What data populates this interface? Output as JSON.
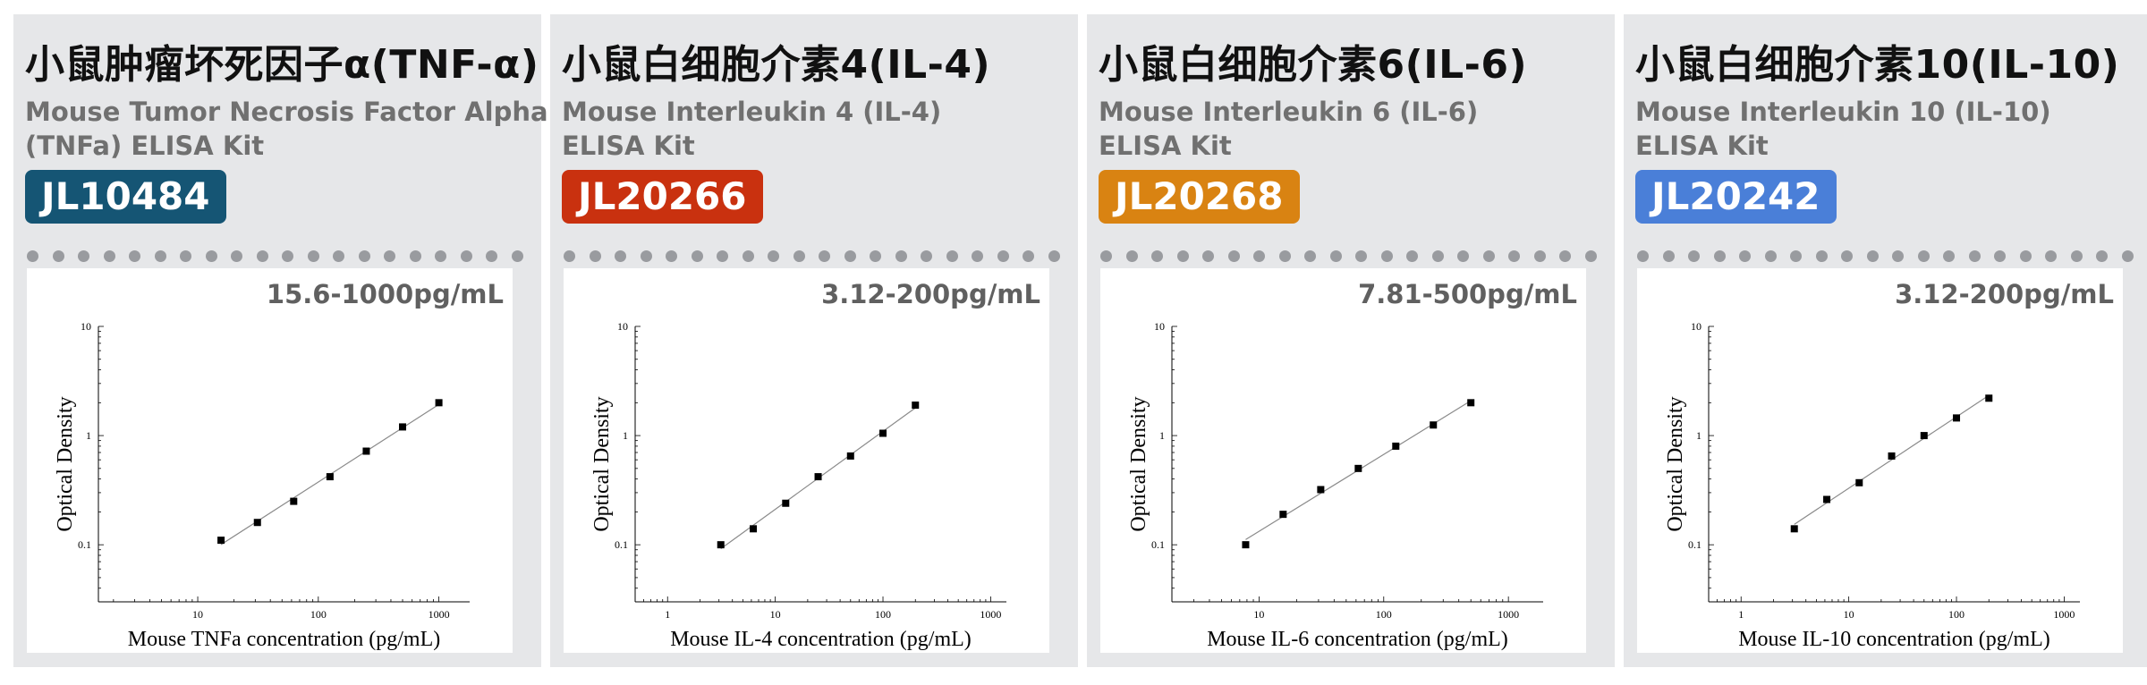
{
  "chart_data": [
    {
      "type": "scatter",
      "title": "小鼠肿瘤坏死因子α(TNF-α)",
      "subtitle_lines": [
        "Mouse Tumor Necrosis Factor Alpha",
        " (TNFa) ELISA Kit"
      ],
      "code": "JL10484",
      "range": "15.6-1000pg/mL",
      "xlabel": "Mouse TNFa concentration (pg/mL)",
      "ylabel": "Optical Density",
      "x_scale": "log",
      "y_scale": "log",
      "xlim": [
        1.5,
        1800
      ],
      "ylim": [
        0.03,
        10
      ],
      "x_ticks": [
        10,
        100,
        1000
      ],
      "x_tick_labels": [
        "10",
        "100",
        "1000"
      ],
      "y_ticks": [
        0.1,
        1,
        10
      ],
      "y_tick_labels": [
        "0.1",
        "1",
        "10"
      ],
      "grid": false,
      "trend_line": true,
      "series": [
        {
          "x": [
            15.6,
            31.25,
            62.5,
            125,
            250,
            500,
            1000
          ],
          "y": [
            0.11,
            0.16,
            0.25,
            0.42,
            0.72,
            1.2,
            2.0
          ]
        }
      ]
    },
    {
      "type": "scatter",
      "title": "小鼠白细胞介素4(IL-4)",
      "subtitle_lines": [
        "Mouse Interleukin 4 (IL-4)",
        "ELISA Kit"
      ],
      "code": "JL20266",
      "range": "3.12-200pg/mL",
      "xlabel": "Mouse IL-4 concentration (pg/mL)",
      "ylabel": "Optical Density",
      "x_scale": "log",
      "y_scale": "log",
      "xlim": [
        0.5,
        1400
      ],
      "ylim": [
        0.03,
        10
      ],
      "x_ticks": [
        1,
        10,
        100,
        1000
      ],
      "x_tick_labels": [
        "1",
        "10",
        "100",
        "1000"
      ],
      "y_ticks": [
        0.1,
        1,
        10
      ],
      "y_tick_labels": [
        "0.1",
        "1",
        "10"
      ],
      "grid": false,
      "trend_line": true,
      "series": [
        {
          "x": [
            3.12,
            6.25,
            12.5,
            25,
            50,
            100,
            200
          ],
          "y": [
            0.1,
            0.14,
            0.24,
            0.42,
            0.65,
            1.05,
            1.9
          ]
        }
      ]
    },
    {
      "type": "scatter",
      "title": "小鼠白细胞介素6(IL-6)",
      "subtitle_lines": [
        "Mouse Interleukin 6 (IL-6)",
        "ELISA Kit"
      ],
      "code": "JL20268",
      "range": "7.81-500pg/mL",
      "xlabel": "Mouse IL-6 concentration (pg/mL)",
      "ylabel": "Optical Density",
      "x_scale": "log",
      "y_scale": "log",
      "xlim": [
        2,
        1900
      ],
      "ylim": [
        0.03,
        10
      ],
      "x_ticks": [
        10,
        100,
        1000
      ],
      "x_tick_labels": [
        "10",
        "100",
        "1000"
      ],
      "y_ticks": [
        0.1,
        1,
        10
      ],
      "y_tick_labels": [
        "0.1",
        "1",
        "10"
      ],
      "grid": false,
      "trend_line": true,
      "series": [
        {
          "x": [
            7.81,
            15.6,
            31.25,
            62.5,
            125,
            250,
            500
          ],
          "y": [
            0.1,
            0.19,
            0.32,
            0.5,
            0.8,
            1.25,
            2.0
          ]
        }
      ]
    },
    {
      "type": "scatter",
      "title": "小鼠白细胞介素10(IL-10)",
      "subtitle_lines": [
        "Mouse Interleukin 10 (IL-10)",
        "ELISA Kit"
      ],
      "code": "JL20242",
      "range": "3.12-200pg/mL",
      "xlabel": "Mouse IL-10 concentration (pg/mL)",
      "ylabel": "Optical Density",
      "x_scale": "log",
      "y_scale": "log",
      "xlim": [
        0.5,
        1400
      ],
      "ylim": [
        0.03,
        10
      ],
      "x_ticks": [
        1,
        10,
        100,
        1000
      ],
      "x_tick_labels": [
        "1",
        "10",
        "100",
        "1000"
      ],
      "y_ticks": [
        0.1,
        1,
        10
      ],
      "y_tick_labels": [
        "0.1",
        "1",
        "10"
      ],
      "grid": false,
      "trend_line": true,
      "series": [
        {
          "x": [
            3.12,
            6.25,
            12.5,
            25,
            50,
            100,
            200
          ],
          "y": [
            0.14,
            0.26,
            0.37,
            0.65,
            1.0,
            1.45,
            2.2
          ]
        }
      ]
    }
  ],
  "colors": {
    "badges": [
      "#155574",
      "#c9310f",
      "#d98312",
      "#4a7fd8"
    ],
    "panel_bg": "#e6e7e9",
    "dot": "#999b9f"
  }
}
